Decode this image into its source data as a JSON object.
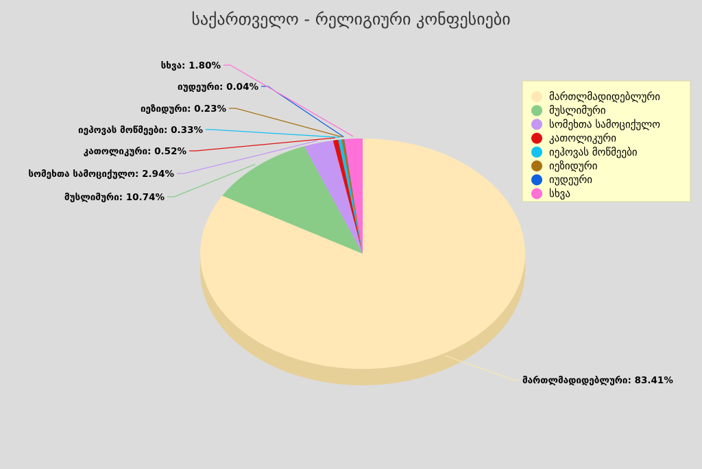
{
  "chart_data": {
    "type": "pie",
    "title": "საქართველო - რელიგიური კონფესიები",
    "slices": [
      {
        "name": "მართლმადიდებლური",
        "value": 83.41,
        "label": "მართლმადიდებლური: 83.41%",
        "color": "#ffe8b5",
        "side_color": "#e6d098"
      },
      {
        "name": "მუსლიმური",
        "value": 10.74,
        "label": "მუსლიმური: 10.74%",
        "color": "#88cc88",
        "side_color": "#6faf6f"
      },
      {
        "name": "სომეხთა სამოციქულო",
        "value": 2.94,
        "label": "სომეხთა სამოციქულო: 2.94%",
        "color": "#c597f5",
        "side_color": "#a87fd6"
      },
      {
        "name": "კათოლიკური",
        "value": 0.52,
        "label": "კათოლიკური: 0.52%",
        "color": "#e01010",
        "side_color": "#b80c0c"
      },
      {
        "name": "იეჰოვას მოწმეები",
        "value": 0.33,
        "label": "იეჰოვას მოწმეები: 0.33%",
        "color": "#12c2f0",
        "side_color": "#0ea0c8"
      },
      {
        "name": "იეზიდური",
        "value": 0.23,
        "label": "იეზიდური: 0.23%",
        "color": "#a87210",
        "side_color": "#8a5d0c"
      },
      {
        "name": "იუდეური",
        "value": 0.04,
        "label": "იუდეური: 0.04%",
        "color": "#1060e0",
        "side_color": "#0c4cb8"
      },
      {
        "name": "სხვა",
        "value": 1.8,
        "label": "სხვა: 1.80%",
        "color": "#ff70d8",
        "side_color": "#d85ab6"
      }
    ],
    "legend_position": "right"
  },
  "colors": {
    "background": "#dcdcdc",
    "legend_background": "#ffffcc"
  }
}
